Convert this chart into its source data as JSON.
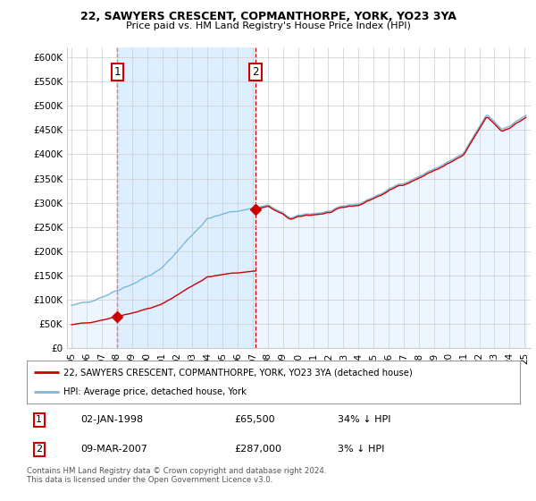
{
  "title1": "22, SAWYERS CRESCENT, COPMANTHORPE, YORK, YO23 3YA",
  "title2": "Price paid vs. HM Land Registry's House Price Index (HPI)",
  "ylim": [
    0,
    620000
  ],
  "yticks": [
    0,
    50000,
    100000,
    150000,
    200000,
    250000,
    300000,
    350000,
    400000,
    450000,
    500000,
    550000,
    600000
  ],
  "ytick_labels": [
    "£0",
    "£50K",
    "£100K",
    "£150K",
    "£200K",
    "£250K",
    "£300K",
    "£350K",
    "£400K",
    "£450K",
    "£500K",
    "£550K",
    "£600K"
  ],
  "sale1_year": 1998.04,
  "sale1_price": 65500,
  "sale2_year": 2007.19,
  "sale2_price": 287000,
  "hpi_color": "#7ab8d9",
  "hpi_fill_color": "#ddeeff",
  "sale_color": "#cc0000",
  "vline_color": "#cc0000",
  "background_color": "#ffffff",
  "grid_color": "#cccccc",
  "legend_label1": "22, SAWYERS CRESCENT, COPMANTHORPE, YORK, YO23 3YA (detached house)",
  "legend_label2": "HPI: Average price, detached house, York",
  "table_row1": [
    "1",
    "02-JAN-1998",
    "£65,500",
    "34% ↓ HPI"
  ],
  "table_row2": [
    "2",
    "09-MAR-2007",
    "£287,000",
    "3% ↓ HPI"
  ],
  "footnote": "Contains HM Land Registry data © Crown copyright and database right 2024.\nThis data is licensed under the Open Government Licence v3.0."
}
